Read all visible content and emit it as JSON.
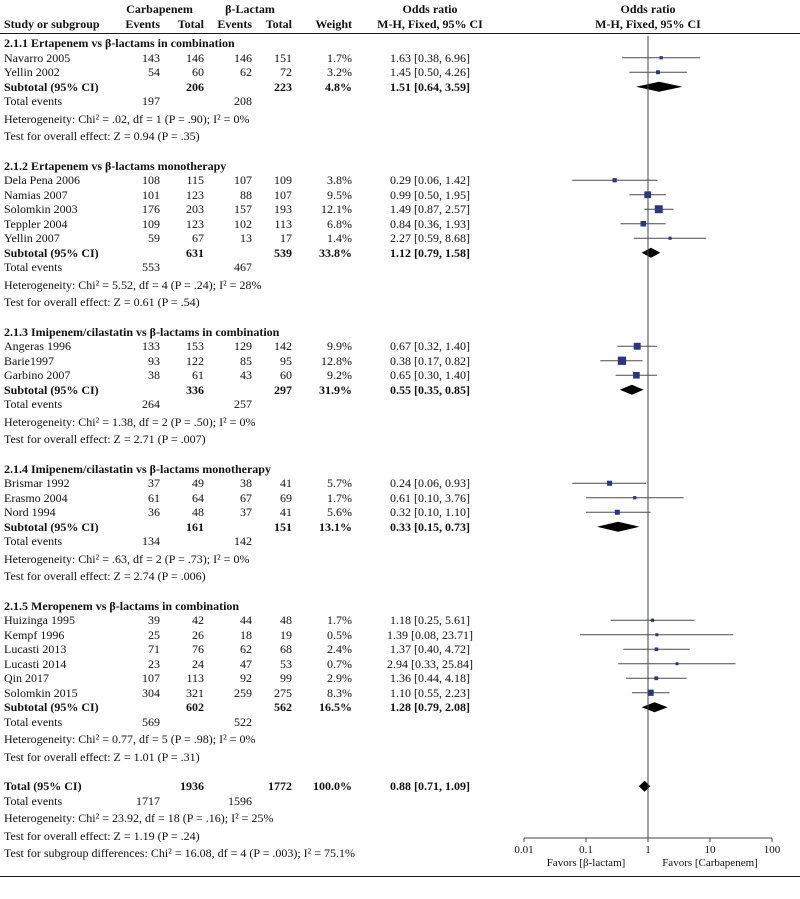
{
  "header": {
    "study_col": "Study or subgroup",
    "group1": "Carbapenem",
    "group2": "β-Lactam",
    "events": "Events",
    "total": "Total",
    "weight": "Weight",
    "or_title": "Odds ratio",
    "or_subtitle": "M-H, Fixed, 95% CI",
    "plot_title": "Odds ratio",
    "plot_subtitle": "M-H, Fixed, 95% CI"
  },
  "colors": {
    "marker": "#2d3580",
    "diamond": "#000000",
    "ci_line": "#4d4d4d",
    "axis": "#444444",
    "rule": "#1a1a1a"
  },
  "chart_data": {
    "type": "scatter",
    "subtype": "forest-plot",
    "title": "Odds ratio  M-H, Fixed, 95% CI",
    "xlabel": "",
    "ylabel": "",
    "x_scale": "log",
    "xlim": [
      0.01,
      100
    ],
    "x_ticks": [
      "0.01",
      "0.1",
      "1",
      "10",
      "100"
    ],
    "x_tick_values": [
      0.01,
      0.1,
      1,
      10,
      100
    ],
    "favors_left": "Favors [β-lactam]",
    "favors_right": "Favors [Carbapenem]",
    "rows": [
      {
        "type": "subgroup",
        "label": "2.1.1 Ertapenem vs β-lactams in combination"
      },
      {
        "type": "study",
        "study": "Navarro 2005",
        "e1": 143,
        "t1": 146,
        "e2": 146,
        "t2": 151,
        "weight": "1.7%",
        "w": 1.7,
        "or_text": "1.63 [0.38, 6.96]",
        "or": 1.63,
        "low": 0.38,
        "high": 6.96
      },
      {
        "type": "study",
        "study": "Yellin 2002",
        "e1": 54,
        "t1": 60,
        "e2": 62,
        "t2": 72,
        "weight": "3.2%",
        "w": 3.2,
        "or_text": "1.45 [0.50, 4.26]",
        "or": 1.45,
        "low": 0.5,
        "high": 4.26
      },
      {
        "type": "subtotal",
        "label": "Subtotal (95% CI)",
        "t1": 206,
        "t2": 223,
        "weight": "4.8%",
        "or_text": "1.51 [0.64, 3.59]",
        "or": 1.51,
        "low": 0.64,
        "high": 3.59
      },
      {
        "type": "events",
        "label": "Total events",
        "e1": 197,
        "e2": 208
      },
      {
        "type": "text",
        "text": "Heterogeneity: Chi² = .02, df = 1 (P = .90); I² = 0%"
      },
      {
        "type": "text",
        "text": "Test for overall effect: Z = 0.94 (P = .35)"
      },
      {
        "type": "gap"
      },
      {
        "type": "subgroup",
        "label": "2.1.2 Ertapenem vs β-lactams monotherapy"
      },
      {
        "type": "study",
        "study": "Dela Pena 2006",
        "e1": 108,
        "t1": 115,
        "e2": 107,
        "t2": 109,
        "weight": "3.8%",
        "w": 3.8,
        "or_text": "0.29 [0.06, 1.42]",
        "or": 0.29,
        "low": 0.06,
        "high": 1.42
      },
      {
        "type": "study",
        "study": "Namias 2007",
        "e1": 101,
        "t1": 123,
        "e2": 88,
        "t2": 107,
        "weight": "9.5%",
        "w": 9.5,
        "or_text": "0.99 [0.50, 1.95]",
        "or": 0.99,
        "low": 0.5,
        "high": 1.95
      },
      {
        "type": "study",
        "study": "Solomkin 2003",
        "e1": 176,
        "t1": 203,
        "e2": 157,
        "t2": 193,
        "weight": "12.1%",
        "w": 12.1,
        "or_text": "1.49 [0.87, 2.57]",
        "or": 1.49,
        "low": 0.87,
        "high": 2.57
      },
      {
        "type": "study",
        "study": "Teppler 2004",
        "e1": 109,
        "t1": 123,
        "e2": 102,
        "t2": 113,
        "weight": "6.8%",
        "w": 6.8,
        "or_text": "0.84 [0.36, 1.93]",
        "or": 0.84,
        "low": 0.36,
        "high": 1.93
      },
      {
        "type": "study",
        "study": "Yellin 2007",
        "e1": 59,
        "t1": 67,
        "e2": 13,
        "t2": 17,
        "weight": "1.4%",
        "w": 1.4,
        "or_text": "2.27 [0.59, 8.68]",
        "or": 2.27,
        "low": 0.59,
        "high": 8.68
      },
      {
        "type": "subtotal",
        "label": "Subtotal (95% CI)",
        "t1": 631,
        "t2": 539,
        "weight": "33.8%",
        "or_text": "1.12 [0.79, 1.58]",
        "or": 1.12,
        "low": 0.79,
        "high": 1.58
      },
      {
        "type": "events",
        "label": "Total events",
        "e1": 553,
        "e2": 467
      },
      {
        "type": "text",
        "text": "Heterogeneity: Chi² = 5.52, df = 4 (P = .24); I² = 28%"
      },
      {
        "type": "text",
        "text": "Test for overall effect: Z = 0.61 (P = .54)"
      },
      {
        "type": "gap"
      },
      {
        "type": "subgroup",
        "label": "2.1.3 Imipenem/cilastatin vs β-lactams in combination"
      },
      {
        "type": "study",
        "study": "Angeras 1996",
        "e1": 133,
        "t1": 153,
        "e2": 129,
        "t2": 142,
        "weight": "9.9%",
        "w": 9.9,
        "or_text": "0.67 [0.32, 1.40]",
        "or": 0.67,
        "low": 0.32,
        "high": 1.4
      },
      {
        "type": "study",
        "study": "Barie1997",
        "e1": 93,
        "t1": 122,
        "e2": 85,
        "t2": 95,
        "weight": "12.8%",
        "w": 12.8,
        "or_text": "0.38 [0.17, 0.82]",
        "or": 0.38,
        "low": 0.17,
        "high": 0.82
      },
      {
        "type": "study",
        "study": "Garbino 2007",
        "e1": 38,
        "t1": 61,
        "e2": 43,
        "t2": 60,
        "weight": "9.2%",
        "w": 9.2,
        "or_text": "0.65 [0.30, 1.40]",
        "or": 0.65,
        "low": 0.3,
        "high": 1.4
      },
      {
        "type": "subtotal",
        "label": "Subtotal (95% CI)",
        "t1": 336,
        "t2": 297,
        "weight": "31.9%",
        "or_text": "0.55 [0.35, 0.85]",
        "or": 0.55,
        "low": 0.35,
        "high": 0.85
      },
      {
        "type": "events",
        "label": "Total events",
        "e1": 264,
        "e2": 257
      },
      {
        "type": "text",
        "text": "Heterogeneity: Chi² = 1.38, df = 2 (P = .50); I² = 0%"
      },
      {
        "type": "text",
        "text": "Test for overall effect: Z = 2.71 (P = .007)"
      },
      {
        "type": "gap"
      },
      {
        "type": "subgroup",
        "label": "2.1.4 Imipenem/cilastatin vs β-lactams monotherapy"
      },
      {
        "type": "study",
        "study": "Brismar 1992",
        "e1": 37,
        "t1": 49,
        "e2": 38,
        "t2": 41,
        "weight": "5.7%",
        "w": 5.7,
        "or_text": "0.24 [0.06, 0.93]",
        "or": 0.24,
        "low": 0.06,
        "high": 0.93
      },
      {
        "type": "study",
        "study": "Erasmo 2004",
        "e1": 61,
        "t1": 64,
        "e2": 67,
        "t2": 69,
        "weight": "1.7%",
        "w": 1.7,
        "or_text": "0.61 [0.10, 3.76]",
        "or": 0.61,
        "low": 0.1,
        "high": 3.76
      },
      {
        "type": "study",
        "study": "Nord 1994",
        "e1": 36,
        "t1": 48,
        "e2": 37,
        "t2": 41,
        "weight": "5.6%",
        "w": 5.6,
        "or_text": "0.32 [0.10, 1.10]",
        "or": 0.32,
        "low": 0.1,
        "high": 1.1
      },
      {
        "type": "subtotal",
        "label": "Subtotal (95% CI)",
        "t1": 161,
        "t2": 151,
        "weight": "13.1%",
        "or_text": "0.33 [0.15, 0.73]",
        "or": 0.33,
        "low": 0.15,
        "high": 0.73
      },
      {
        "type": "events",
        "label": "Total events",
        "e1": 134,
        "e2": 142
      },
      {
        "type": "text",
        "text": "Heterogeneity: Chi² = .63, df = 2 (P = .73); I² = 0%"
      },
      {
        "type": "text",
        "text": "Test for overall effect: Z = 2.74 (P = .006)"
      },
      {
        "type": "gap"
      },
      {
        "type": "subgroup",
        "label": "2.1.5 Meropenem vs β-lactams in combination"
      },
      {
        "type": "study",
        "study": "Huizinga 1995",
        "e1": 39,
        "t1": 42,
        "e2": 44,
        "t2": 48,
        "weight": "1.7%",
        "w": 1.7,
        "or_text": "1.18 [0.25, 5.61]",
        "or": 1.18,
        "low": 0.25,
        "high": 5.61
      },
      {
        "type": "study",
        "study": "Kempf 1996",
        "e1": 25,
        "t1": 26,
        "e2": 18,
        "t2": 19,
        "weight": "0.5%",
        "w": 0.5,
        "or_text": "1.39 [0.08, 23.71]",
        "or": 1.39,
        "low": 0.08,
        "high": 23.71
      },
      {
        "type": "study",
        "study": "Lucasti 2013",
        "e1": 71,
        "t1": 76,
        "e2": 62,
        "t2": 68,
        "weight": "2.4%",
        "w": 2.4,
        "or_text": "1.37 [0.40, 4.72]",
        "or": 1.37,
        "low": 0.4,
        "high": 4.72
      },
      {
        "type": "study",
        "study": "Lucasti 2014",
        "e1": 23,
        "t1": 24,
        "e2": 47,
        "t2": 53,
        "weight": "0.7%",
        "w": 0.7,
        "or_text": "2.94 [0.33, 25.84]",
        "or": 2.94,
        "low": 0.33,
        "high": 25.84
      },
      {
        "type": "study",
        "study": "Qin 2017",
        "e1": 107,
        "t1": 113,
        "e2": 92,
        "t2": 99,
        "weight": "2.9%",
        "w": 2.9,
        "or_text": "1.36 [0.44, 4.18]",
        "or": 1.36,
        "low": 0.44,
        "high": 4.18
      },
      {
        "type": "study",
        "study": "Solomkin 2015",
        "e1": 304,
        "t1": 321,
        "e2": 259,
        "t2": 275,
        "weight": "8.3%",
        "w": 8.3,
        "or_text": "1.10 [0.55, 2.23]",
        "or": 1.1,
        "low": 0.55,
        "high": 2.23
      },
      {
        "type": "subtotal",
        "label": "Subtotal (95% CI)",
        "t1": 602,
        "t2": 562,
        "weight": "16.5%",
        "or_text": "1.28 [0.79, 2.08]",
        "or": 1.28,
        "low": 0.79,
        "high": 2.08
      },
      {
        "type": "events",
        "label": "Total events",
        "e1": 569,
        "e2": 522
      },
      {
        "type": "text",
        "text": "Heterogeneity: Chi² = 0.77, df = 5 (P = .98); I² = 0%"
      },
      {
        "type": "text",
        "text": "Test for overall effect: Z = 1.01 (P = .31)"
      },
      {
        "type": "gap"
      },
      {
        "type": "total",
        "label": "Total (95% CI)",
        "t1": 1936,
        "t2": 1772,
        "weight": "100.0%",
        "or_text": "0.88 [0.71, 1.09]",
        "or": 0.88,
        "low": 0.71,
        "high": 1.09
      },
      {
        "type": "events",
        "label": "Total events",
        "e1": 1717,
        "e2": 1596
      },
      {
        "type": "text",
        "text": "Heterogeneity: Chi² = 23.92, df = 18 (P = .16); I² = 25%"
      },
      {
        "type": "text",
        "text": "Test for overall effect: Z = 1.19 (P = .24)"
      },
      {
        "type": "text",
        "text": "Test for subgroup differences: Chi² = 16.08, df = 4 (P = .003); I² = 75.1%"
      }
    ]
  }
}
